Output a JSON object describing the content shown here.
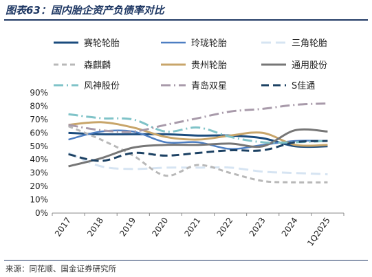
{
  "title": "图表63：国内胎企资产负债率对比",
  "source": "来源：同花顺、国金证券研究所",
  "chart_data": {
    "type": "line",
    "categories": [
      "2017",
      "2018",
      "2019",
      "2020",
      "2021",
      "2022",
      "2023",
      "2024",
      "1Q2025"
    ],
    "ylim": [
      0,
      90
    ],
    "yticks": [
      0,
      10,
      20,
      30,
      40,
      50,
      60,
      70,
      80,
      90
    ],
    "ytick_labels": [
      "0%",
      "10%",
      "20%",
      "30%",
      "40%",
      "50%",
      "60%",
      "70%",
      "80%",
      "90%"
    ],
    "grid": false,
    "legend_position": "top",
    "series": [
      {
        "name": "赛轮轮胎",
        "color": "#1a4b7d",
        "dash": "solid",
        "width": 3,
        "values": [
          60,
          59,
          59,
          59,
          58,
          58,
          56,
          50,
          50
        ]
      },
      {
        "name": "玲珑轮胎",
        "color": "#4d7ec2",
        "dash": "solid",
        "width": 2.5,
        "values": [
          55,
          61,
          61,
          53,
          53,
          48,
          51,
          54,
          54
        ]
      },
      {
        "name": "三角轮胎",
        "color": "#d6e4f2",
        "dash": "long",
        "width": 3,
        "values": [
          45,
          35,
          33,
          34,
          34,
          34,
          31,
          30,
          29
        ]
      },
      {
        "name": "森麒麟",
        "color": "#b8b8b8",
        "dash": "dash",
        "width": 3,
        "values": [
          65,
          55,
          43,
          28,
          36,
          30,
          24,
          23,
          23
        ]
      },
      {
        "name": "贵州轮胎",
        "color": "#c8a56a",
        "dash": "solid",
        "width": 3,
        "values": [
          66,
          68,
          64,
          57,
          55,
          58,
          60,
          51,
          51
        ]
      },
      {
        "name": "通用股份",
        "color": "#767676",
        "dash": "solid",
        "width": 3,
        "values": [
          35,
          41,
          49,
          51,
          51,
          52,
          50,
          62,
          61
        ]
      },
      {
        "name": "风神股份",
        "color": "#7fc3c8",
        "dash": "dashdot",
        "width": 3,
        "values": [
          74,
          71,
          70,
          61,
          64,
          57,
          53,
          53,
          54
        ]
      },
      {
        "name": "青岛双星",
        "color": "#a89aaa",
        "dash": "dashdot",
        "width": 3,
        "values": [
          66,
          62,
          61,
          66,
          71,
          76,
          78,
          81,
          82
        ]
      },
      {
        "name": "S佳通",
        "color": "#1c4163",
        "dash": "longdash",
        "width": 3,
        "values": [
          44,
          39,
          45,
          43,
          45,
          47,
          47,
          53,
          54
        ]
      }
    ]
  }
}
